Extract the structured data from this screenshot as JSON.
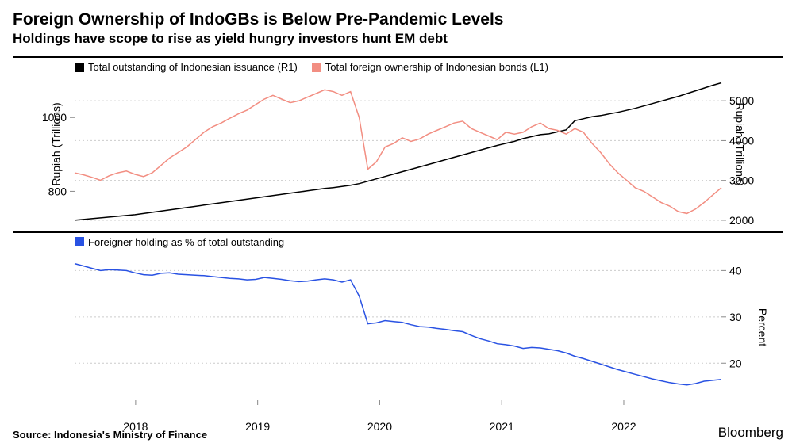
{
  "title": "Foreign Ownership of IndoGBs is Below Pre-Pandemic Levels",
  "subtitle": "Holdings have scope to rise as yield hungry investors hunt EM debt",
  "source": "Source: Indonesia's Ministry of Finance",
  "brand": "Bloomberg",
  "panel_top": {
    "left_axis": {
      "label": "Rupiah (Trillions)",
      "min": 700,
      "max": 1110,
      "ticks": [
        800,
        1000
      ]
    },
    "right_axis": {
      "label": "Rupiah (Trillions)",
      "min": 1800,
      "max": 5600,
      "ticks": [
        2000,
        3000,
        4000,
        5000
      ]
    },
    "series": [
      {
        "name": "Total outstanding of Indonesian issuance (R1)",
        "color": "#000000",
        "axis": "right",
        "data": [
          2000,
          2020,
          2040,
          2060,
          2080,
          2100,
          2120,
          2140,
          2170,
          2200,
          2230,
          2260,
          2290,
          2320,
          2350,
          2380,
          2410,
          2440,
          2470,
          2500,
          2530,
          2560,
          2590,
          2620,
          2650,
          2680,
          2710,
          2740,
          2770,
          2800,
          2820,
          2850,
          2880,
          2920,
          2980,
          3040,
          3100,
          3160,
          3220,
          3280,
          3340,
          3400,
          3460,
          3520,
          3580,
          3640,
          3700,
          3760,
          3820,
          3880,
          3930,
          3980,
          4050,
          4100,
          4150,
          4170,
          4220,
          4270,
          4500,
          4550,
          4600,
          4630,
          4670,
          4710,
          4760,
          4810,
          4870,
          4930,
          4990,
          5050,
          5110,
          5180,
          5250,
          5320,
          5390,
          5450
        ]
      },
      {
        "name": "Total foreign ownership of Indonesian bonds (L1)",
        "color": "#f28e82",
        "axis": "left",
        "data": [
          850,
          845,
          838,
          830,
          842,
          850,
          855,
          846,
          840,
          850,
          870,
          890,
          905,
          920,
          940,
          960,
          975,
          985,
          998,
          1010,
          1020,
          1035,
          1050,
          1060,
          1050,
          1040,
          1045,
          1055,
          1065,
          1075,
          1070,
          1060,
          1070,
          1000,
          860,
          880,
          920,
          930,
          945,
          935,
          942,
          955,
          965,
          975,
          985,
          990,
          970,
          960,
          950,
          940,
          960,
          955,
          960,
          975,
          985,
          970,
          965,
          955,
          970,
          960,
          930,
          905,
          875,
          850,
          830,
          810,
          800,
          785,
          770,
          760,
          745,
          740,
          752,
          770,
          790,
          810
        ]
      }
    ]
  },
  "panel_bottom": {
    "right_axis": {
      "label": "Percent",
      "min": 12,
      "max": 44,
      "ticks": [
        20,
        30,
        40
      ]
    },
    "series": [
      {
        "name": "Foreigner holding as % of total outstanding",
        "color": "#2952e3",
        "data": [
          41.5,
          41.0,
          40.5,
          40.0,
          40.2,
          40.1,
          40.0,
          39.5,
          39.1,
          39.0,
          39.4,
          39.5,
          39.2,
          39.1,
          39.0,
          38.9,
          38.7,
          38.5,
          38.3,
          38.2,
          38.0,
          38.1,
          38.5,
          38.3,
          38.1,
          37.8,
          37.6,
          37.7,
          38.0,
          38.2,
          38.0,
          37.5,
          38.0,
          34.5,
          28.5,
          28.7,
          29.2,
          29.0,
          28.8,
          28.3,
          27.9,
          27.8,
          27.5,
          27.3,
          27.0,
          26.8,
          26.0,
          25.3,
          24.8,
          24.2,
          24.0,
          23.7,
          23.2,
          23.4,
          23.3,
          23.0,
          22.7,
          22.2,
          21.5,
          21.0,
          20.4,
          19.8,
          19.2,
          18.6,
          18.1,
          17.6,
          17.1,
          16.6,
          16.2,
          15.8,
          15.5,
          15.3,
          15.6,
          16.1,
          16.3,
          16.5
        ]
      }
    ]
  },
  "x_axis": {
    "min": 2017.5,
    "max": 2022.8,
    "ticks": [
      2018,
      2019,
      2020,
      2021,
      2022
    ]
  },
  "styling": {
    "line_width": 1.5,
    "grid_color": "#cccccc",
    "background": "#ffffff"
  }
}
